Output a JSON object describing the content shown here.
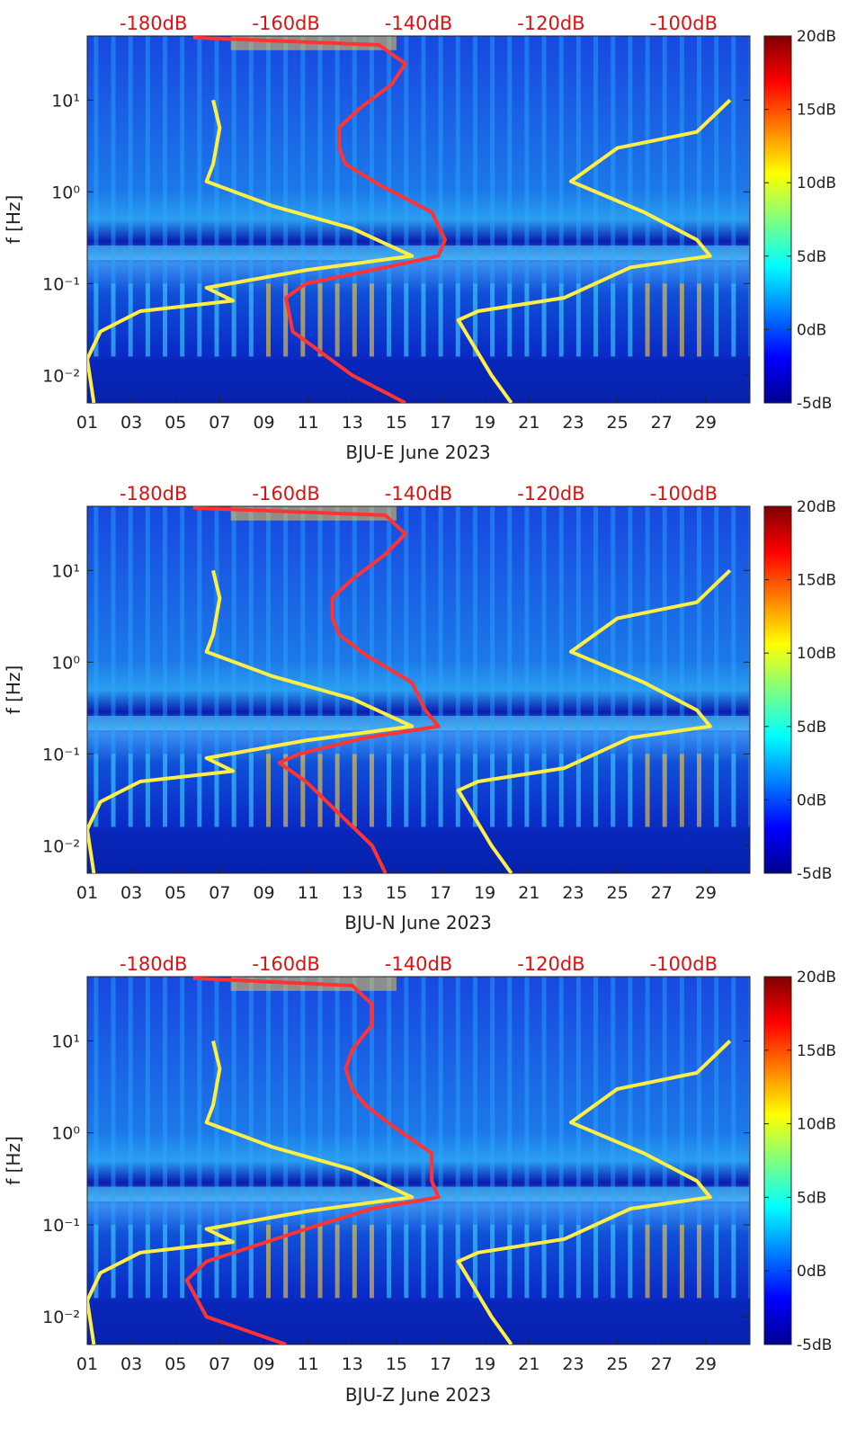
{
  "chart_data": [
    {
      "type": "heatmap",
      "xlabel": "BJU-E June 2023",
      "ylabel": "f [Hz]",
      "x_ticks": [
        "01",
        "03",
        "05",
        "07",
        "09",
        "11",
        "13",
        "15",
        "17",
        "19",
        "21",
        "23",
        "25",
        "27",
        "29"
      ],
      "y_ticks": [
        "10^-2",
        "10^-1",
        "10^0",
        "10^1"
      ],
      "y_scale": "log",
      "ylim": [
        0.005,
        50
      ],
      "top_axis_ticks": [
        "-180dB",
        "-160dB",
        "-140dB",
        "-120dB",
        "-100dB"
      ],
      "top_axis_color": "#dd1111",
      "colorbar_ticks": [
        "20dB",
        "15dB",
        "10dB",
        "5dB",
        "0dB",
        "-5dB"
      ],
      "colorbar_range": [
        -5,
        20
      ],
      "colormap": "jet",
      "series": [
        {
          "color": "#ff3333",
          "points": [
            [
              48,
              -174
            ],
            [
              40,
              -146
            ],
            [
              25,
              -142
            ],
            [
              15,
              -144
            ],
            [
              8,
              -149
            ],
            [
              5,
              -152
            ],
            [
              3,
              -152
            ],
            [
              2,
              -151
            ],
            [
              1.2,
              -146
            ],
            [
              0.6,
              -138
            ],
            [
              0.3,
              -136
            ],
            [
              0.2,
              -137
            ],
            [
              0.15,
              -145
            ],
            [
              0.1,
              -157
            ],
            [
              0.07,
              -160
            ],
            [
              0.03,
              -159
            ],
            [
              0.01,
              -150
            ],
            [
              0.005,
              -142
            ]
          ]
        },
        {
          "color": "#ffee44",
          "points": [
            [
              10,
              -171
            ],
            [
              5,
              -170
            ],
            [
              2,
              -171
            ],
            [
              1.3,
              -172
            ],
            [
              0.7,
              -162
            ],
            [
              0.4,
              -150
            ],
            [
              0.2,
              -141
            ],
            [
              0.14,
              -157
            ],
            [
              0.09,
              -172
            ],
            [
              0.065,
              -168
            ],
            [
              0.05,
              -182
            ],
            [
              0.03,
              -188
            ],
            [
              0.015,
              -190
            ],
            [
              0.005,
              -189
            ]
          ]
        },
        {
          "color": "#ffee44",
          "points": [
            [
              10,
              -93
            ],
            [
              4.5,
              -98
            ],
            [
              3,
              -110
            ],
            [
              1.3,
              -117
            ],
            [
              0.6,
              -106
            ],
            [
              0.3,
              -98
            ],
            [
              0.2,
              -96
            ],
            [
              0.15,
              -108
            ],
            [
              0.07,
              -118
            ],
            [
              0.05,
              -131
            ],
            [
              0.04,
              -134
            ],
            [
              0.01,
              -129
            ],
            [
              0.005,
              -126
            ]
          ]
        }
      ]
    },
    {
      "type": "heatmap",
      "xlabel": "BJU-N June 2023",
      "ylabel": "f [Hz]",
      "x_ticks": [
        "01",
        "03",
        "05",
        "07",
        "09",
        "11",
        "13",
        "15",
        "17",
        "19",
        "21",
        "23",
        "25",
        "27",
        "29"
      ],
      "y_ticks": [
        "10^-2",
        "10^-1",
        "10^0",
        "10^1"
      ],
      "y_scale": "log",
      "ylim": [
        0.005,
        50
      ],
      "top_axis_ticks": [
        "-180dB",
        "-160dB",
        "-140dB",
        "-120dB",
        "-100dB"
      ],
      "top_axis_color": "#dd1111",
      "colorbar_ticks": [
        "20dB",
        "15dB",
        "10dB",
        "5dB",
        "0dB",
        "-5dB"
      ],
      "colorbar_range": [
        -5,
        20
      ],
      "colormap": "jet",
      "series": [
        {
          "color": "#ff3333",
          "points": [
            [
              48,
              -174
            ],
            [
              40,
              -145
            ],
            [
              25,
              -142
            ],
            [
              15,
              -145
            ],
            [
              8,
              -150
            ],
            [
              5,
              -153
            ],
            [
              3,
              -153
            ],
            [
              2,
              -152
            ],
            [
              1.2,
              -148
            ],
            [
              0.6,
              -141
            ],
            [
              0.3,
              -139
            ],
            [
              0.2,
              -137
            ],
            [
              0.15,
              -148
            ],
            [
              0.1,
              -158
            ],
            [
              0.08,
              -161
            ],
            [
              0.05,
              -157
            ],
            [
              0.01,
              -147
            ],
            [
              0.005,
              -145
            ]
          ]
        },
        {
          "color": "#ffee44",
          "points": [
            [
              10,
              -171
            ],
            [
              5,
              -170
            ],
            [
              2,
              -171
            ],
            [
              1.3,
              -172
            ],
            [
              0.7,
              -162
            ],
            [
              0.4,
              -150
            ],
            [
              0.2,
              -141
            ],
            [
              0.14,
              -157
            ],
            [
              0.09,
              -172
            ],
            [
              0.065,
              -168
            ],
            [
              0.05,
              -182
            ],
            [
              0.03,
              -188
            ],
            [
              0.015,
              -190
            ],
            [
              0.005,
              -189
            ]
          ]
        },
        {
          "color": "#ffee44",
          "points": [
            [
              10,
              -93
            ],
            [
              4.5,
              -98
            ],
            [
              3,
              -110
            ],
            [
              1.3,
              -117
            ],
            [
              0.6,
              -106
            ],
            [
              0.3,
              -98
            ],
            [
              0.2,
              -96
            ],
            [
              0.15,
              -108
            ],
            [
              0.07,
              -118
            ],
            [
              0.05,
              -131
            ],
            [
              0.04,
              -134
            ],
            [
              0.01,
              -129
            ],
            [
              0.005,
              -126
            ]
          ]
        }
      ]
    },
    {
      "type": "heatmap",
      "xlabel": "BJU-Z June 2023",
      "ylabel": "f [Hz]",
      "x_ticks": [
        "01",
        "03",
        "05",
        "07",
        "09",
        "11",
        "13",
        "15",
        "17",
        "19",
        "21",
        "23",
        "25",
        "27",
        "29"
      ],
      "y_ticks": [
        "10^-2",
        "10^-1",
        "10^0",
        "10^1"
      ],
      "y_scale": "log",
      "ylim": [
        0.005,
        50
      ],
      "top_axis_ticks": [
        "-180dB",
        "-160dB",
        "-140dB",
        "-120dB",
        "-100dB"
      ],
      "top_axis_color": "#dd1111",
      "colorbar_ticks": [
        "20dB",
        "15dB",
        "10dB",
        "5dB",
        "0dB",
        "-5dB"
      ],
      "colorbar_range": [
        -5,
        20
      ],
      "colormap": "jet",
      "series": [
        {
          "color": "#ff3333",
          "points": [
            [
              48,
              -174
            ],
            [
              40,
              -150
            ],
            [
              25,
              -147
            ],
            [
              15,
              -147
            ],
            [
              8,
              -150
            ],
            [
              5,
              -151
            ],
            [
              3,
              -150
            ],
            [
              2,
              -148
            ],
            [
              1.2,
              -144
            ],
            [
              0.6,
              -138
            ],
            [
              0.3,
              -138
            ],
            [
              0.2,
              -137
            ],
            [
              0.15,
              -147
            ],
            [
              0.1,
              -155
            ],
            [
              0.065,
              -163
            ],
            [
              0.04,
              -172
            ],
            [
              0.025,
              -175
            ],
            [
              0.01,
              -172
            ],
            [
              0.005,
              -160
            ]
          ]
        },
        {
          "color": "#ffee44",
          "points": [
            [
              10,
              -171
            ],
            [
              5,
              -170
            ],
            [
              2,
              -171
            ],
            [
              1.3,
              -172
            ],
            [
              0.7,
              -162
            ],
            [
              0.4,
              -150
            ],
            [
              0.2,
              -141
            ],
            [
              0.14,
              -157
            ],
            [
              0.09,
              -172
            ],
            [
              0.065,
              -168
            ],
            [
              0.05,
              -182
            ],
            [
              0.03,
              -188
            ],
            [
              0.015,
              -190
            ],
            [
              0.005,
              -189
            ]
          ]
        },
        {
          "color": "#ffee44",
          "points": [
            [
              10,
              -93
            ],
            [
              4.5,
              -98
            ],
            [
              3,
              -110
            ],
            [
              1.3,
              -117
            ],
            [
              0.6,
              -106
            ],
            [
              0.3,
              -98
            ],
            [
              0.2,
              -96
            ],
            [
              0.15,
              -108
            ],
            [
              0.07,
              -118
            ],
            [
              0.05,
              -131
            ],
            [
              0.04,
              -134
            ],
            [
              0.01,
              -129
            ],
            [
              0.005,
              -126
            ]
          ]
        }
      ]
    }
  ]
}
